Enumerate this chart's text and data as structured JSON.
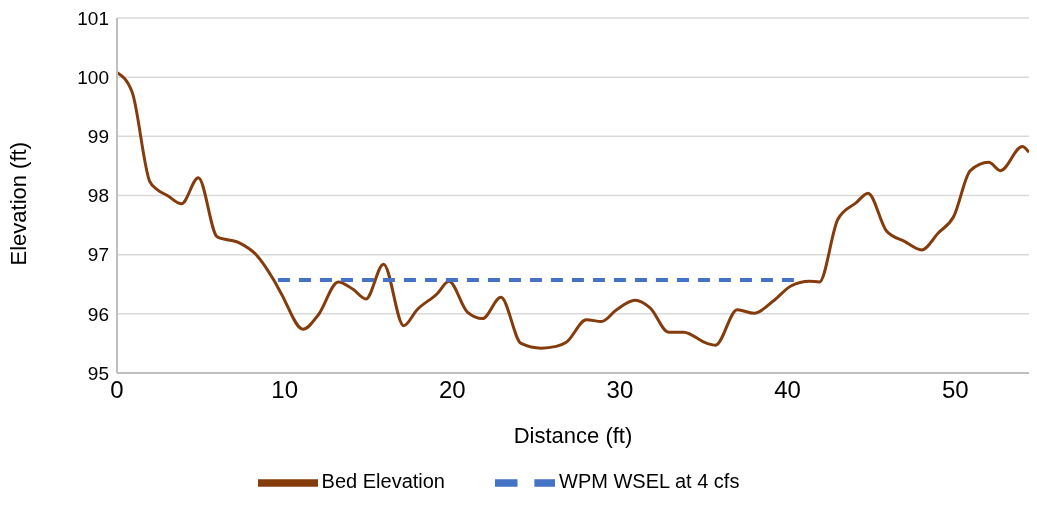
{
  "chart_data": {
    "type": "line",
    "xlabel": "Distance (ft)",
    "ylabel": "Elevation (ft)",
    "xlim": [
      0,
      54.4
    ],
    "xticks": [
      0,
      10,
      20,
      30,
      40,
      50
    ],
    "ylim": [
      95,
      101
    ],
    "yticks": [
      95,
      96,
      97,
      98,
      99,
      100,
      101
    ],
    "grid": "y",
    "legend": "bottom",
    "marker": "none",
    "series": [
      {
        "name": "Bed Elevation",
        "color": "#843c0c",
        "line_style": "solid",
        "x": [
          0,
          0.9,
          1.95,
          2.4,
          3.0,
          3.85,
          4.85,
          5.98,
          7.3,
          8.3,
          9.35,
          9.8,
          11.1,
          12.0,
          13.2,
          14.1,
          14.85,
          15.9,
          17.1,
          17.9,
          19.1,
          19.8,
          20.9,
          21.8,
          22.9,
          24.1,
          25.3,
          26.2,
          26.8,
          28.0,
          28.9,
          29.8,
          30.9,
          31.8,
          32.9,
          33.8,
          35.2,
          35.7,
          37.0,
          38.0,
          39.2,
          40.2,
          41.3,
          41.9,
          43.0,
          44.1,
          44.8,
          45.9,
          47.0,
          48.0,
          49.0,
          49.9,
          50.9,
          52.0,
          52.7,
          54.0,
          54.4
        ],
        "values": [
          100.08,
          99.75,
          98.24,
          98.1,
          98.0,
          97.86,
          98.3,
          97.3,
          97.2,
          97.0,
          96.57,
          96.34,
          95.74,
          95.98,
          96.54,
          96.41,
          96.25,
          96.84,
          95.8,
          96.07,
          96.34,
          96.55,
          96.03,
          95.92,
          96.28,
          95.5,
          95.42,
          95.45,
          95.52,
          95.9,
          95.87,
          96.07,
          96.23,
          96.1,
          95.69,
          95.69,
          95.5,
          95.47,
          96.07,
          96.01,
          96.23,
          96.47,
          96.55,
          96.54,
          97.6,
          97.88,
          98.04,
          97.4,
          97.22,
          97.08,
          97.37,
          97.64,
          98.42,
          98.56,
          98.42,
          98.83,
          98.73
        ]
      },
      {
        "name": "WPM WSEL at 4 cfs",
        "color": "#4472c4",
        "line_style": "dashed",
        "x": [
          9.6,
          40.6
        ],
        "values": [
          96.57,
          96.57
        ]
      }
    ]
  }
}
